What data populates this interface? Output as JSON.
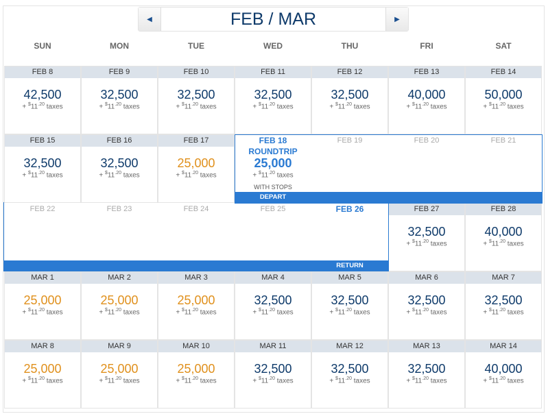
{
  "header": {
    "title": "FEB / MAR",
    "prev_icon": "triangle-left",
    "next_icon": "triangle-right"
  },
  "days": [
    "SUN",
    "MON",
    "TUE",
    "WED",
    "THU",
    "FRI",
    "SAT"
  ],
  "tax": {
    "prefix": "+",
    "currency": "$",
    "dollars": "11",
    "cents": ".20",
    "label": "taxes"
  },
  "colors": {
    "normal": "#0e3a6a",
    "low": "#e0901c",
    "selected": "#2a7ad2"
  },
  "selection": {
    "trip_type": "ROUNDTRIP",
    "stops": "WITH STOPS",
    "depart_label": "DEPART",
    "return_label": "RETURN"
  },
  "weeks": [
    [
      {
        "date": "FEB 8",
        "price": "42,500"
      },
      {
        "date": "FEB 9",
        "price": "32,500"
      },
      {
        "date": "FEB 10",
        "price": "32,500"
      },
      {
        "date": "FEB 11",
        "price": "32,500"
      },
      {
        "date": "FEB 12",
        "price": "32,500"
      },
      {
        "date": "FEB 13",
        "price": "40,000"
      },
      {
        "date": "FEB 14",
        "price": "50,000"
      }
    ],
    [
      {
        "date": "FEB 15",
        "price": "32,500"
      },
      {
        "date": "FEB 16",
        "price": "32,500"
      },
      {
        "date": "FEB 17",
        "price": "25,000",
        "low": true
      },
      {
        "date": "FEB 18",
        "price": "25,000",
        "type": "depart"
      },
      {
        "date": "FEB 19",
        "type": "range"
      },
      {
        "date": "FEB 20",
        "type": "range"
      },
      {
        "date": "FEB 21",
        "type": "range"
      }
    ],
    [
      {
        "date": "FEB 22",
        "type": "range"
      },
      {
        "date": "FEB 23",
        "type": "range"
      },
      {
        "date": "FEB 24",
        "type": "range"
      },
      {
        "date": "FEB 25",
        "type": "range"
      },
      {
        "date": "FEB 26",
        "type": "return"
      },
      {
        "date": "FEB 27",
        "price": "32,500"
      },
      {
        "date": "FEB 28",
        "price": "40,000"
      }
    ],
    [
      {
        "date": "MAR 1",
        "price": "25,000",
        "low": true
      },
      {
        "date": "MAR 2",
        "price": "25,000",
        "low": true
      },
      {
        "date": "MAR 3",
        "price": "25,000",
        "low": true
      },
      {
        "date": "MAR 4",
        "price": "32,500"
      },
      {
        "date": "MAR 5",
        "price": "32,500"
      },
      {
        "date": "MAR 6",
        "price": "32,500"
      },
      {
        "date": "MAR 7",
        "price": "32,500"
      }
    ],
    [
      {
        "date": "MAR 8",
        "price": "25,000",
        "low": true
      },
      {
        "date": "MAR 9",
        "price": "25,000",
        "low": true
      },
      {
        "date": "MAR 10",
        "price": "25,000",
        "low": true
      },
      {
        "date": "MAR 11",
        "price": "32,500"
      },
      {
        "date": "MAR 12",
        "price": "32,500"
      },
      {
        "date": "MAR 13",
        "price": "32,500"
      },
      {
        "date": "MAR 14",
        "price": "40,000"
      }
    ]
  ]
}
